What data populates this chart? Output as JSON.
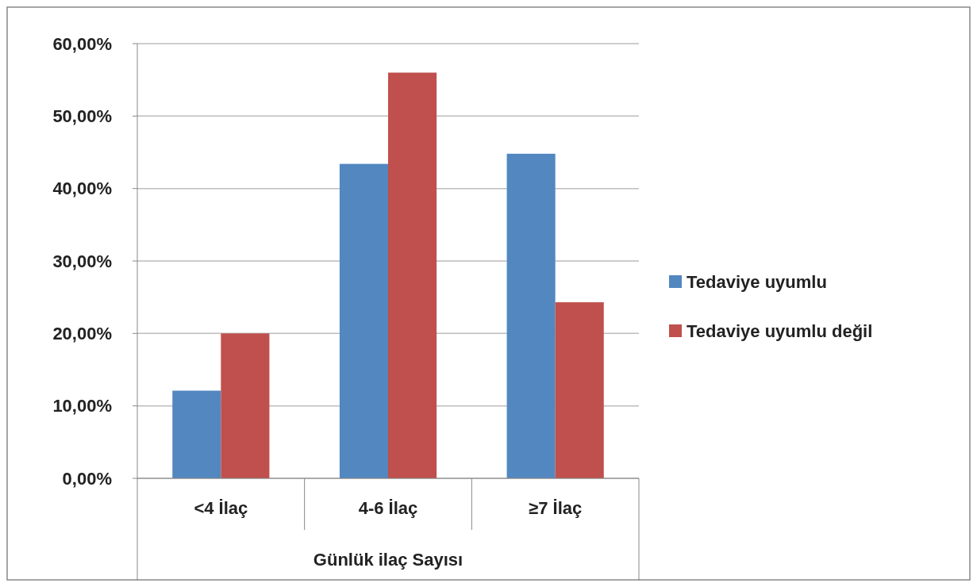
{
  "chart_data": {
    "type": "bar",
    "xlabel": "Günlük ilaç Sayısı",
    "categories": [
      "<4 İlaç",
      "4-6 İlaç",
      "≥7 İlaç"
    ],
    "series": [
      {
        "name": "Tedaviye uyumlu",
        "color": "#5287c0",
        "values": [
          12.1,
          43.4,
          44.8
        ]
      },
      {
        "name": "Tedaviye uyumlu değil",
        "color": "#c0504d",
        "values": [
          20.0,
          56.0,
          24.3
        ]
      }
    ],
    "ylim": [
      0,
      60
    ],
    "yticks": [
      {
        "value": 0,
        "label": "0,00%"
      },
      {
        "value": 10,
        "label": "10,00%"
      },
      {
        "value": 20,
        "label": "20,00%"
      },
      {
        "value": 30,
        "label": "30,00%"
      },
      {
        "value": 40,
        "label": "40,00%"
      },
      {
        "value": 50,
        "label": "50,00%"
      },
      {
        "value": 60,
        "label": "60,00%"
      }
    ],
    "grid": "y",
    "legend": "right"
  }
}
